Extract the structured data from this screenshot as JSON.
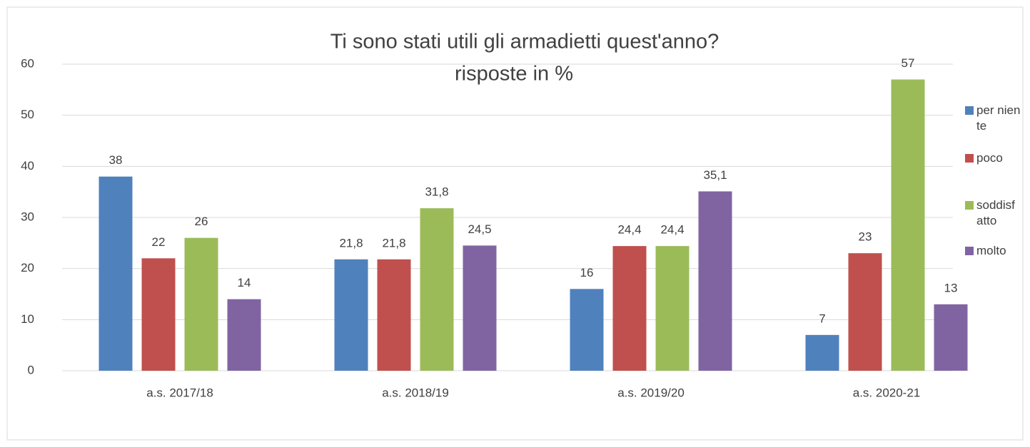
{
  "chart_data": {
    "type": "bar",
    "title": "Ti sono stati utili gli armadietti quest'anno?",
    "subtitle": "risposte in %",
    "categories": [
      "a.s. 2017/18",
      "a.s. 2018/19",
      "a.s. 2019/20",
      "a.s. 2020-21"
    ],
    "series": [
      {
        "name": "per niente",
        "color": "#4f81bd",
        "values": [
          38,
          21.8,
          16,
          7
        ],
        "value_labels": [
          "38",
          "21,8",
          "16",
          "7"
        ]
      },
      {
        "name": "poco",
        "color": "#c0504d",
        "values": [
          22,
          21.8,
          24.4,
          23
        ],
        "value_labels": [
          "22",
          "21,8",
          "24,4",
          "23"
        ]
      },
      {
        "name": "soddisfatto",
        "color": "#9bbb59",
        "values": [
          26,
          31.8,
          24.4,
          57
        ],
        "value_labels": [
          "26",
          "31,8",
          "24,4",
          "57"
        ]
      },
      {
        "name": "molto",
        "color": "#8064a2",
        "values": [
          14,
          24.5,
          35.1,
          13
        ],
        "value_labels": [
          "14",
          "24,5",
          "35,1",
          "13"
        ]
      }
    ],
    "ylim": [
      0,
      60
    ],
    "yticks": [
      0,
      10,
      20,
      30,
      40,
      50,
      60
    ],
    "grid": true,
    "legend": "right"
  }
}
